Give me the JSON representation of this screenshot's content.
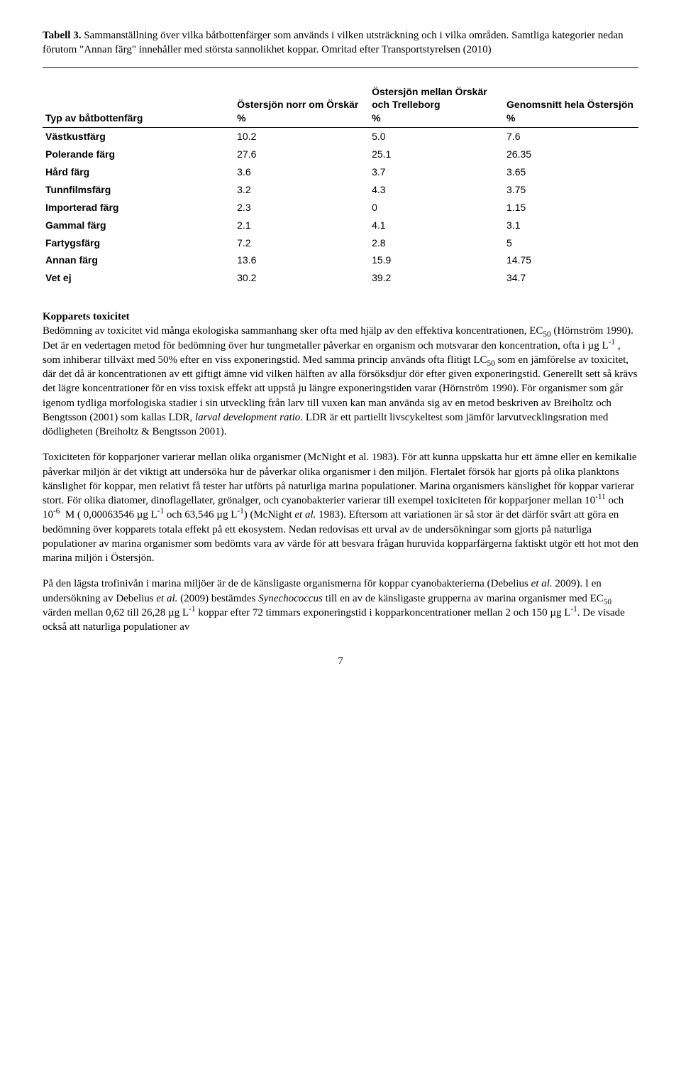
{
  "caption": {
    "label": "Tabell 3.",
    "text_line1": " Sammanställning över vilka båtbottenfärger som används i vilken utsträckning och i vilka områden.",
    "text_line2": "Samtliga kategorier nedan förutom \"Annan färg\" innehåller med största sannolikhet koppar. Omritad efter Transportstyrelsen (2010)"
  },
  "table": {
    "col_headers": {
      "c0": "Typ av båtbottenfärg",
      "c1_top": "Östersjön norr om Örskär",
      "c2_top": "Östersjön mellan Örskär och Trelleborg",
      "c3_top": "Genomsnitt hela Östersjön",
      "unit": "%"
    },
    "rows": [
      {
        "label": "Västkustfärg",
        "v1": "10.2",
        "v2": "5.0",
        "v3": "7.6"
      },
      {
        "label": "Polerande färg",
        "v1": "27.6",
        "v2": "25.1",
        "v3": "26.35"
      },
      {
        "label": "Hård färg",
        "v1": "3.6",
        "v2": "3.7",
        "v3": "3.65"
      },
      {
        "label": "Tunnfilmsfärg",
        "v1": "3.2",
        "v2": "4.3",
        "v3": "3.75"
      },
      {
        "label": "Importerad färg",
        "v1": "2.3",
        "v2": "0",
        "v3": "1.15"
      },
      {
        "label": "Gammal färg",
        "v1": "2.1",
        "v2": "4.1",
        "v3": "3.1"
      },
      {
        "label": "Fartygsfärg",
        "v1": "7.2",
        "v2": "2.8",
        "v3": "5"
      },
      {
        "label": "Annan färg",
        "v1": "13.6",
        "v2": "15.9",
        "v3": "14.75"
      },
      {
        "label": "Vet ej",
        "v1": "30.2",
        "v2": "39.2",
        "v3": "34.7"
      }
    ]
  },
  "section": {
    "title": "Kopparets toxicitet"
  },
  "page_number": "7"
}
